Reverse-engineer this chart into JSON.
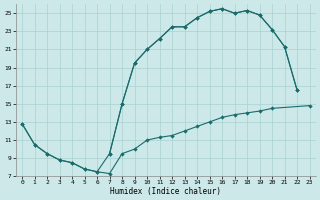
{
  "bg_color": "#cce8e8",
  "grid_color": "#aad0d0",
  "line_color": "#1a6b6b",
  "xlabel": "Humidex (Indice chaleur)",
  "xlim": [
    -0.5,
    23.5
  ],
  "ylim": [
    7,
    26
  ],
  "xticks": [
    0,
    1,
    2,
    3,
    4,
    5,
    6,
    7,
    8,
    9,
    10,
    11,
    12,
    13,
    14,
    15,
    16,
    17,
    18,
    19,
    20,
    21,
    22,
    23
  ],
  "yticks": [
    7,
    9,
    11,
    13,
    15,
    17,
    19,
    21,
    23,
    25
  ],
  "curve1_x": [
    0,
    1,
    2,
    3,
    4,
    5,
    6,
    7,
    8,
    9,
    10,
    11,
    12,
    13,
    14,
    15,
    16,
    17,
    18,
    19,
    20,
    23
  ],
  "curve1_y": [
    12.8,
    10.5,
    9.5,
    8.8,
    8.5,
    7.8,
    7.5,
    7.3,
    9.5,
    10.0,
    11.0,
    11.3,
    11.5,
    12.0,
    12.5,
    13.0,
    13.5,
    13.8,
    14.0,
    14.2,
    14.5,
    14.8
  ],
  "curve2_x": [
    0,
    1,
    2,
    3,
    4,
    5,
    6,
    7,
    8,
    9,
    10,
    11,
    12,
    13,
    14,
    15,
    16,
    17,
    18,
    19,
    20,
    21,
    22
  ],
  "curve2_y": [
    12.8,
    10.5,
    9.5,
    8.8,
    8.5,
    7.8,
    7.5,
    9.5,
    15.0,
    19.5,
    21.0,
    22.2,
    23.5,
    23.5,
    24.5,
    25.2,
    25.5,
    25.0,
    25.3,
    24.8,
    23.2,
    21.3,
    16.5
  ],
  "curve3_x": [
    7,
    8,
    9,
    10,
    11,
    12,
    13,
    14,
    15,
    16,
    17,
    18,
    19,
    20,
    21,
    22
  ],
  "curve3_y": [
    9.5,
    15.0,
    19.5,
    21.0,
    22.2,
    23.5,
    23.5,
    24.5,
    25.2,
    25.5,
    25.0,
    25.3,
    24.8,
    23.2,
    21.3,
    16.5
  ]
}
